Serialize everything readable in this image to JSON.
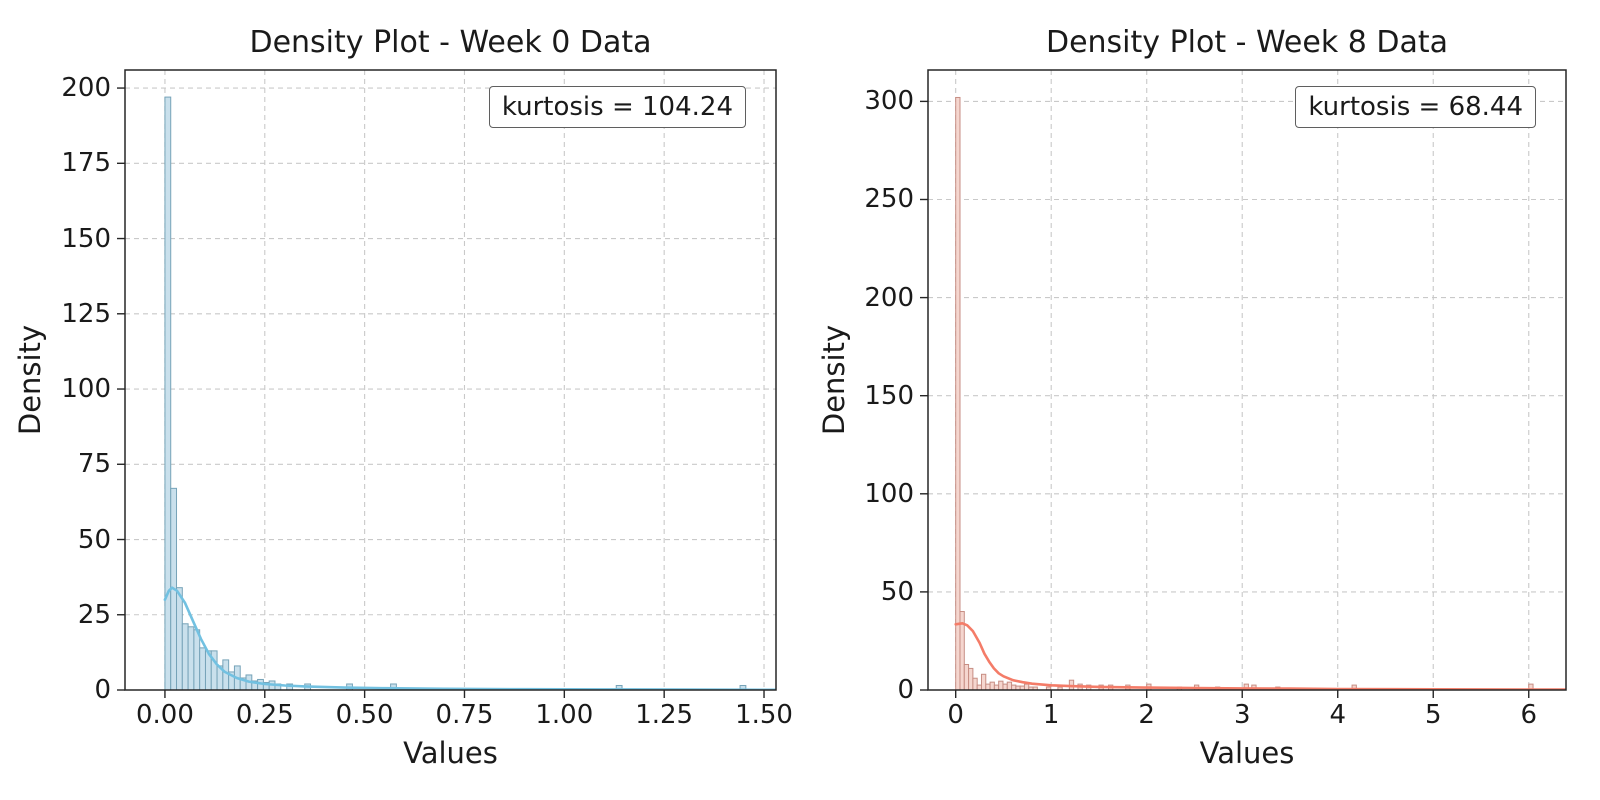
{
  "page": {
    "background": "#ffffff"
  },
  "chart_data": [
    {
      "type": "bar",
      "variant": "histogram_with_kde",
      "title": "Density Plot - Week 0 Data",
      "xlabel": "Values",
      "ylabel": "Density",
      "annotation": "kurtosis = 104.24",
      "grid": true,
      "legend": "none",
      "xlim": [
        -0.1,
        1.53
      ],
      "ylim": [
        0,
        206
      ],
      "xticks": [
        0.0,
        0.25,
        0.5,
        0.75,
        1.0,
        1.25,
        1.5
      ],
      "xtick_labels": [
        "0.00",
        "0.25",
        "0.50",
        "0.75",
        "1.00",
        "1.25",
        "1.50"
      ],
      "yticks": [
        0,
        25,
        50,
        75,
        100,
        125,
        150,
        175,
        200
      ],
      "ytick_labels": [
        "0",
        "25",
        "50",
        "75",
        "100",
        "125",
        "150",
        "175",
        "200"
      ],
      "bin_width": 0.0145,
      "bars": [
        [
          0.0,
          197
        ],
        [
          0.0145,
          67
        ],
        [
          0.029,
          34
        ],
        [
          0.0435,
          22
        ],
        [
          0.058,
          21
        ],
        [
          0.0725,
          20
        ],
        [
          0.087,
          14
        ],
        [
          0.1015,
          13
        ],
        [
          0.116,
          13
        ],
        [
          0.1305,
          8
        ],
        [
          0.145,
          10
        ],
        [
          0.1595,
          6
        ],
        [
          0.174,
          8
        ],
        [
          0.1885,
          4
        ],
        [
          0.203,
          5
        ],
        [
          0.2175,
          3
        ],
        [
          0.232,
          3.5
        ],
        [
          0.2465,
          2.5
        ],
        [
          0.261,
          3
        ],
        [
          0.2755,
          2
        ],
        [
          0.305,
          2
        ],
        [
          0.35,
          2
        ],
        [
          0.455,
          2
        ],
        [
          0.565,
          2
        ],
        [
          1.13,
          1.5
        ],
        [
          1.44,
          1.5
        ]
      ],
      "kde": [
        [
          0.0,
          30
        ],
        [
          0.01,
          33
        ],
        [
          0.018,
          34
        ],
        [
          0.03,
          33
        ],
        [
          0.05,
          29
        ],
        [
          0.07,
          23
        ],
        [
          0.09,
          17
        ],
        [
          0.11,
          12
        ],
        [
          0.13,
          8.5
        ],
        [
          0.15,
          6
        ],
        [
          0.18,
          4
        ],
        [
          0.21,
          2.8
        ],
        [
          0.25,
          2
        ],
        [
          0.3,
          1.5
        ],
        [
          0.35,
          1.2
        ],
        [
          0.45,
          0.8
        ],
        [
          0.55,
          0.6
        ],
        [
          0.7,
          0.4
        ],
        [
          0.9,
          0.25
        ],
        [
          1.1,
          0.2
        ],
        [
          1.3,
          0.12
        ],
        [
          1.53,
          0.08
        ]
      ],
      "colors": {
        "bar_fill": "#c9e0ec",
        "bar_edge": "#76a3b8",
        "kde_line": "#72c1e1"
      }
    },
    {
      "type": "bar",
      "variant": "histogram_with_kde",
      "title": "Density Plot - Week 8 Data",
      "xlabel": "Values",
      "ylabel": "Density",
      "annotation": "kurtosis = 68.44",
      "grid": true,
      "legend": "none",
      "xlim": [
        -0.29,
        6.39
      ],
      "ylim": [
        0,
        316
      ],
      "xticks": [
        0,
        1,
        2,
        3,
        4,
        5,
        6
      ],
      "xtick_labels": [
        "0",
        "1",
        "2",
        "3",
        "4",
        "5",
        "6"
      ],
      "yticks": [
        0,
        50,
        100,
        150,
        200,
        250,
        300
      ],
      "ytick_labels": [
        "0",
        "50",
        "100",
        "150",
        "200",
        "250",
        "300"
      ],
      "bin_width": 0.045,
      "bars": [
        [
          0.0,
          302
        ],
        [
          0.045,
          40
        ],
        [
          0.09,
          13
        ],
        [
          0.135,
          11
        ],
        [
          0.18,
          6
        ],
        [
          0.225,
          2.5
        ],
        [
          0.27,
          8
        ],
        [
          0.315,
          3
        ],
        [
          0.36,
          4
        ],
        [
          0.405,
          2.5
        ],
        [
          0.45,
          4.5
        ],
        [
          0.495,
          3
        ],
        [
          0.54,
          4
        ],
        [
          0.585,
          2.5
        ],
        [
          0.63,
          2
        ],
        [
          0.675,
          2
        ],
        [
          0.72,
          3
        ],
        [
          0.765,
          1.5
        ],
        [
          0.81,
          1.5
        ],
        [
          0.95,
          1.5
        ],
        [
          1.07,
          1.5
        ],
        [
          1.19,
          5
        ],
        [
          1.28,
          3
        ],
        [
          1.37,
          2.5
        ],
        [
          1.5,
          2.5
        ],
        [
          1.6,
          2.5
        ],
        [
          1.78,
          2.5
        ],
        [
          2.0,
          3
        ],
        [
          2.32,
          1.5
        ],
        [
          2.5,
          2.5
        ],
        [
          2.72,
          1.5
        ],
        [
          3.02,
          3
        ],
        [
          3.1,
          2.5
        ],
        [
          3.35,
          1.5
        ],
        [
          4.15,
          2.5
        ],
        [
          6.0,
          3
        ]
      ],
      "kde": [
        [
          0.0,
          33.5
        ],
        [
          0.07,
          34
        ],
        [
          0.12,
          33
        ],
        [
          0.18,
          30
        ],
        [
          0.25,
          24
        ],
        [
          0.3,
          18.5
        ],
        [
          0.35,
          14.5
        ],
        [
          0.4,
          11
        ],
        [
          0.45,
          8.5
        ],
        [
          0.5,
          7
        ],
        [
          0.6,
          5
        ],
        [
          0.7,
          4
        ],
        [
          0.8,
          3.2
        ],
        [
          1.0,
          2.4
        ],
        [
          1.2,
          2
        ],
        [
          1.5,
          1.6
        ],
        [
          2.0,
          1.2
        ],
        [
          2.5,
          1.0
        ],
        [
          3.0,
          0.8
        ],
        [
          3.5,
          0.7
        ],
        [
          4.0,
          0.5
        ],
        [
          5.0,
          0.35
        ],
        [
          6.0,
          0.25
        ],
        [
          6.39,
          0.2
        ]
      ],
      "colors": {
        "bar_fill": "#f5d6cf",
        "bar_edge": "#c78e84",
        "kde_line": "#f47c68"
      }
    }
  ],
  "style_tokens": {
    "grid_color": "#c9c9c9",
    "frame_color": "#262626",
    "text_color": "#1a1a1a"
  }
}
